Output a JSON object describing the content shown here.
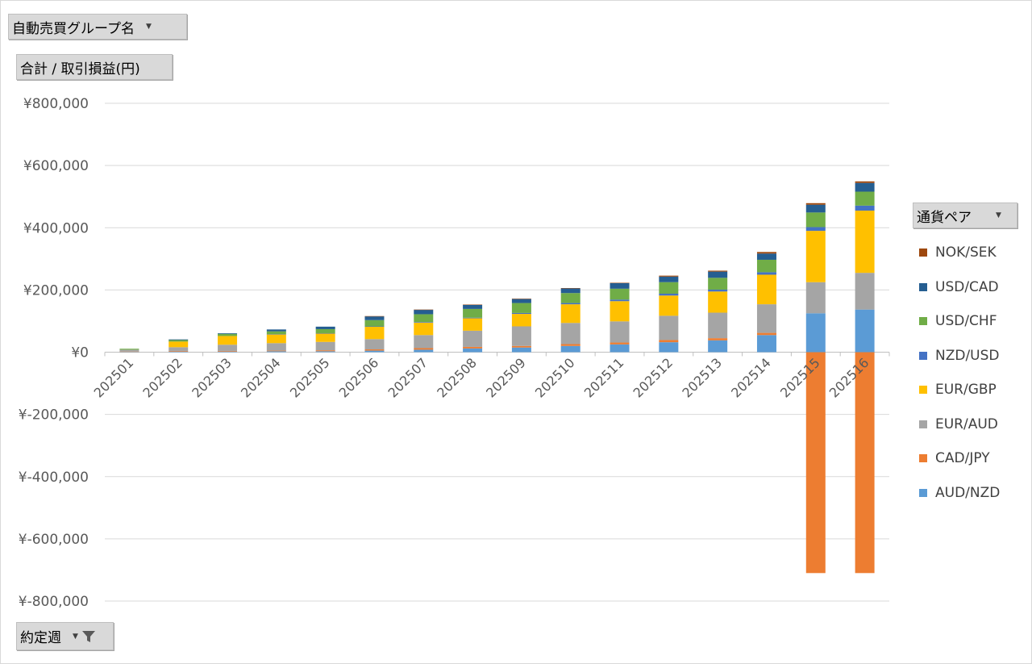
{
  "pivot": {
    "group_field": "自動売買グループ名",
    "value_field": "合計 / 取引損益(円)",
    "axis_field": "約定週",
    "legend_field": "通貨ペア"
  },
  "chart_data": {
    "type": "bar",
    "stacked": true,
    "categories": [
      "202501",
      "202502",
      "202503",
      "202504",
      "202505",
      "202506",
      "202507",
      "202508",
      "202509",
      "202510",
      "202511",
      "202512",
      "202513",
      "202514",
      "202515",
      "202516"
    ],
    "ylim": [
      -800000,
      800000
    ],
    "yticks": [
      -800000,
      -600000,
      -400000,
      -200000,
      0,
      200000,
      400000,
      600000,
      800000
    ],
    "ytick_labels": [
      "¥-800,000",
      "¥-600,000",
      "¥-400,000",
      "¥-200,000",
      "¥0",
      "¥200,000",
      "¥400,000",
      "¥600,000",
      "¥800,000"
    ],
    "grid": true,
    "legend_position": "right",
    "series": [
      {
        "name": "AUD/NZD",
        "color": "#5b9bd5",
        "values": [
          1000,
          2000,
          2000,
          3000,
          3000,
          5000,
          8000,
          12000,
          15000,
          20000,
          25000,
          32000,
          38000,
          55000,
          125000,
          137000
        ]
      },
      {
        "name": "CAD/JPY",
        "color": "#ed7d31",
        "values": [
          1000,
          2000,
          2000,
          2000,
          3000,
          4000,
          5000,
          5000,
          5000,
          6000,
          6000,
          7000,
          7000,
          7000,
          -710000,
          -710000
        ]
      },
      {
        "name": "EUR/AUD",
        "color": "#a5a5a5",
        "values": [
          6000,
          12000,
          20000,
          24000,
          27000,
          33000,
          42000,
          52000,
          63000,
          68000,
          68000,
          78000,
          82000,
          92000,
          100000,
          118000
        ]
      },
      {
        "name": "EUR/GBP",
        "color": "#ffc000",
        "values": [
          0,
          18000,
          28000,
          28000,
          27000,
          40000,
          40000,
          40000,
          40000,
          60000,
          65000,
          65000,
          68000,
          95000,
          165000,
          200000
        ]
      },
      {
        "name": "NZD/USD",
        "color": "#4472c4",
        "values": [
          0,
          0,
          0,
          1000,
          1000,
          1000,
          2000,
          2000,
          3000,
          4000,
          5000,
          6000,
          6000,
          8000,
          12000,
          16000
        ]
      },
      {
        "name": "USD/CHF",
        "color": "#70ad47",
        "values": [
          3000,
          5000,
          7000,
          9000,
          13000,
          20000,
          25000,
          28000,
          32000,
          32000,
          35000,
          37000,
          38000,
          40000,
          47000,
          45000
        ]
      },
      {
        "name": "USD/CAD",
        "color": "#255e91",
        "values": [
          0,
          2000,
          2000,
          6000,
          8000,
          12000,
          14000,
          13000,
          13000,
          15000,
          18000,
          18000,
          20000,
          20000,
          25000,
          28000
        ]
      },
      {
        "name": "NOK/SEK",
        "color": "#9e480e",
        "values": [
          0,
          0,
          0,
          0,
          0,
          1000,
          1000,
          1000,
          1000,
          1000,
          1000,
          3000,
          3000,
          5000,
          5000,
          5000
        ]
      }
    ]
  }
}
